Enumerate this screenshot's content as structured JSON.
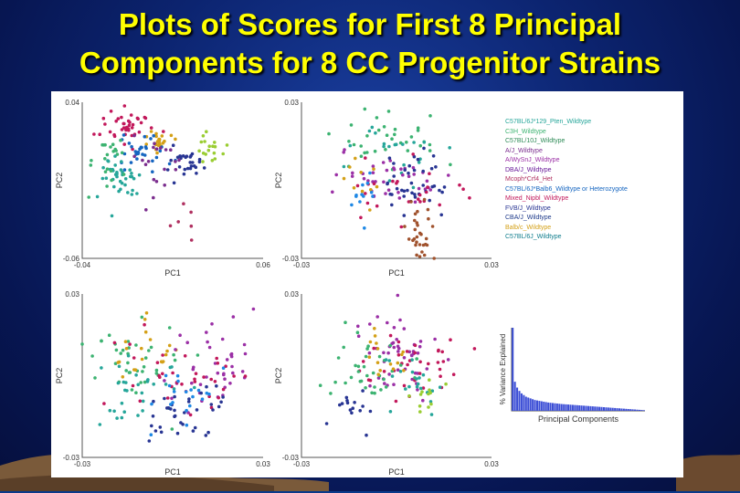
{
  "slide": {
    "title_line1": "Plots of Scores for First 8 Principal",
    "title_line2": "Components for 8 CC Progenitor Strains"
  },
  "legend": [
    {
      "label": "C57BL/6J*129_Pten_Wildtype",
      "color": "#26a69a"
    },
    {
      "label": "C3H_Wildtype",
      "color": "#3cb371"
    },
    {
      "label": "C57BL/10J_Wildtype",
      "color": "#2e8b57"
    },
    {
      "label": "A/J_Wildtype",
      "color": "#7b2d8e"
    },
    {
      "label": "A/WySnJ_Wildtype",
      "color": "#9b30a6"
    },
    {
      "label": "DBA/J_Wildtype",
      "color": "#6a1b9a"
    },
    {
      "label": "Mcoph*Crf4_Het",
      "color": "#b03060"
    },
    {
      "label": "C57BL/6J*Balb6_Wildtype or Heterozygote",
      "color": "#1565c0"
    },
    {
      "label": "Mixed_Nipbl_Wildtype",
      "color": "#c2185b"
    },
    {
      "label": "FVB/J_Wildtype",
      "color": "#283593"
    },
    {
      "label": "CBA/J_Wildtype",
      "color": "#1e3a8a"
    },
    {
      "label": "Balb/c_Wildtype",
      "color": "#d4a017"
    },
    {
      "label": "C57BL/6J_Wildtype",
      "color": "#0e7c8c"
    }
  ],
  "chart_data": [
    {
      "type": "scatter",
      "panel": "top-left",
      "xlabel": "PC1",
      "ylabel": "PC2",
      "xlim": [
        -0.04,
        0.06
      ],
      "ylim": [
        -0.06,
        0.04
      ],
      "x_ticks": [
        "-0.04",
        "0.06"
      ],
      "y_ticks": [
        "0.04",
        "-0.06"
      ],
      "clusters": [
        {
          "color": "#c2185b",
          "cx": -0.015,
          "cy": 0.025,
          "sx": 0.007,
          "sy": 0.006,
          "n": 40
        },
        {
          "color": "#d4a017",
          "cx": 0.002,
          "cy": 0.015,
          "sx": 0.004,
          "sy": 0.004,
          "n": 22
        },
        {
          "color": "#9acd32",
          "cx": 0.03,
          "cy": 0.01,
          "sx": 0.004,
          "sy": 0.005,
          "n": 18
        },
        {
          "color": "#283593",
          "cx": 0.018,
          "cy": 0.005,
          "sx": 0.006,
          "sy": 0.006,
          "n": 28
        },
        {
          "color": "#1565c0",
          "cx": -0.005,
          "cy": 0.008,
          "sx": 0.006,
          "sy": 0.006,
          "n": 30
        },
        {
          "color": "#26a69a",
          "cx": -0.02,
          "cy": -0.008,
          "sx": 0.006,
          "sy": 0.008,
          "n": 40
        },
        {
          "color": "#3cb371",
          "cx": -0.025,
          "cy": 0.002,
          "sx": 0.006,
          "sy": 0.008,
          "n": 22
        },
        {
          "color": "#7b2d8e",
          "cx": 0.002,
          "cy": 0.002,
          "sx": 0.008,
          "sy": 0.01,
          "n": 20
        },
        {
          "color": "#b03060",
          "cx": 0.012,
          "cy": -0.04,
          "sx": 0.006,
          "sy": 0.008,
          "n": 6
        }
      ]
    },
    {
      "type": "scatter",
      "panel": "top-right",
      "xlabel": "PC1",
      "ylabel": "PC2",
      "xlim": [
        -0.03,
        0.03
      ],
      "ylim": [
        -0.03,
        0.03
      ],
      "x_ticks": [
        "-0.03",
        "0.03"
      ],
      "y_ticks": [
        "0.03",
        "-0.03"
      ],
      "clusters": [
        {
          "color": "#3cb371",
          "cx": 0.0,
          "cy": 0.015,
          "sx": 0.009,
          "sy": 0.006,
          "n": 35
        },
        {
          "color": "#26a69a",
          "cx": -0.005,
          "cy": 0.01,
          "sx": 0.008,
          "sy": 0.006,
          "n": 20
        },
        {
          "color": "#9b30a6",
          "cx": -0.005,
          "cy": 0.0,
          "sx": 0.01,
          "sy": 0.005,
          "n": 40
        },
        {
          "color": "#283593",
          "cx": 0.006,
          "cy": -0.002,
          "sx": 0.005,
          "sy": 0.006,
          "n": 40
        },
        {
          "color": "#c2185b",
          "cx": 0.0,
          "cy": -0.005,
          "sx": 0.01,
          "sy": 0.006,
          "n": 25
        },
        {
          "color": "#d4a017",
          "cx": -0.012,
          "cy": 0.002,
          "sx": 0.005,
          "sy": 0.004,
          "n": 10
        },
        {
          "color": "#a0522d",
          "cx": 0.007,
          "cy": -0.018,
          "sx": 0.002,
          "sy": 0.007,
          "n": 30
        },
        {
          "color": "#1e88e5",
          "cx": -0.012,
          "cy": -0.006,
          "sx": 0.004,
          "sy": 0.004,
          "n": 12
        }
      ]
    },
    {
      "type": "scatter",
      "panel": "bottom-left",
      "xlabel": "PC1",
      "ylabel": "PC2",
      "xlim": [
        -0.03,
        0.03
      ],
      "ylim": [
        -0.03,
        0.03
      ],
      "x_ticks": [
        "-0.03",
        "0.03"
      ],
      "y_ticks": [
        "0.03",
        "-0.03"
      ],
      "clusters": [
        {
          "color": "#3cb371",
          "cx": -0.012,
          "cy": 0.006,
          "sx": 0.008,
          "sy": 0.008,
          "n": 40
        },
        {
          "color": "#d4a017",
          "cx": -0.008,
          "cy": 0.008,
          "sx": 0.006,
          "sy": 0.006,
          "n": 20
        },
        {
          "color": "#9b30a6",
          "cx": 0.012,
          "cy": 0.004,
          "sx": 0.008,
          "sy": 0.008,
          "n": 40
        },
        {
          "color": "#c2185b",
          "cx": 0.002,
          "cy": 0.002,
          "sx": 0.01,
          "sy": 0.008,
          "n": 35
        },
        {
          "color": "#26a69a",
          "cx": -0.012,
          "cy": -0.004,
          "sx": 0.006,
          "sy": 0.007,
          "n": 30
        },
        {
          "color": "#283593",
          "cx": 0.004,
          "cy": -0.012,
          "sx": 0.008,
          "sy": 0.006,
          "n": 35
        },
        {
          "color": "#1e88e5",
          "cx": 0.002,
          "cy": -0.008,
          "sx": 0.008,
          "sy": 0.006,
          "n": 20
        }
      ]
    },
    {
      "type": "scatter",
      "panel": "bottom-right",
      "xlabel": "PC1",
      "ylabel": "PC2",
      "xlim": [
        -0.03,
        0.03
      ],
      "ylim": [
        -0.03,
        0.03
      ],
      "x_ticks": [
        "-0.03",
        "0.03"
      ],
      "y_ticks": [
        "0.03",
        "-0.03"
      ],
      "clusters": [
        {
          "color": "#9b30a6",
          "cx": 0.0,
          "cy": 0.006,
          "sx": 0.007,
          "sy": 0.008,
          "n": 50
        },
        {
          "color": "#c2185b",
          "cx": 0.004,
          "cy": 0.004,
          "sx": 0.007,
          "sy": 0.007,
          "n": 35
        },
        {
          "color": "#3cb371",
          "cx": -0.008,
          "cy": 0.002,
          "sx": 0.006,
          "sy": 0.007,
          "n": 35
        },
        {
          "color": "#d4a017",
          "cx": -0.004,
          "cy": 0.006,
          "sx": 0.005,
          "sy": 0.005,
          "n": 15
        },
        {
          "color": "#26a69a",
          "cx": 0.005,
          "cy": -0.004,
          "sx": 0.006,
          "sy": 0.006,
          "n": 20
        },
        {
          "color": "#283593",
          "cx": -0.014,
          "cy": -0.012,
          "sx": 0.003,
          "sy": 0.005,
          "n": 15
        },
        {
          "color": "#9acd32",
          "cx": 0.009,
          "cy": -0.006,
          "sx": 0.003,
          "sy": 0.004,
          "n": 12
        }
      ]
    },
    {
      "type": "bar",
      "panel": "variance",
      "xlabel": "Principal Components",
      "ylabel": "% Variance Explained",
      "color": "#3d4fd6",
      "values": [
        100,
        35,
        28,
        24,
        21,
        19,
        17,
        16,
        15,
        14,
        13,
        12.5,
        12,
        11.5,
        11,
        10.5,
        10,
        9.7,
        9.4,
        9.1,
        8.8,
        8.5,
        8.2,
        8,
        7.8,
        7.6,
        7.4,
        7.2,
        7,
        6.8,
        6.6,
        6.4,
        6.2,
        6,
        5.8,
        5.6,
        5.4,
        5.2,
        5,
        4.8,
        4.6,
        4.4,
        4.2,
        4,
        3.8,
        3.6,
        3.4,
        3.2,
        3,
        2.8,
        2.6,
        2.4,
        2.2,
        2,
        1.8,
        1.6,
        1.4,
        1.2,
        1,
        0.8
      ]
    }
  ]
}
